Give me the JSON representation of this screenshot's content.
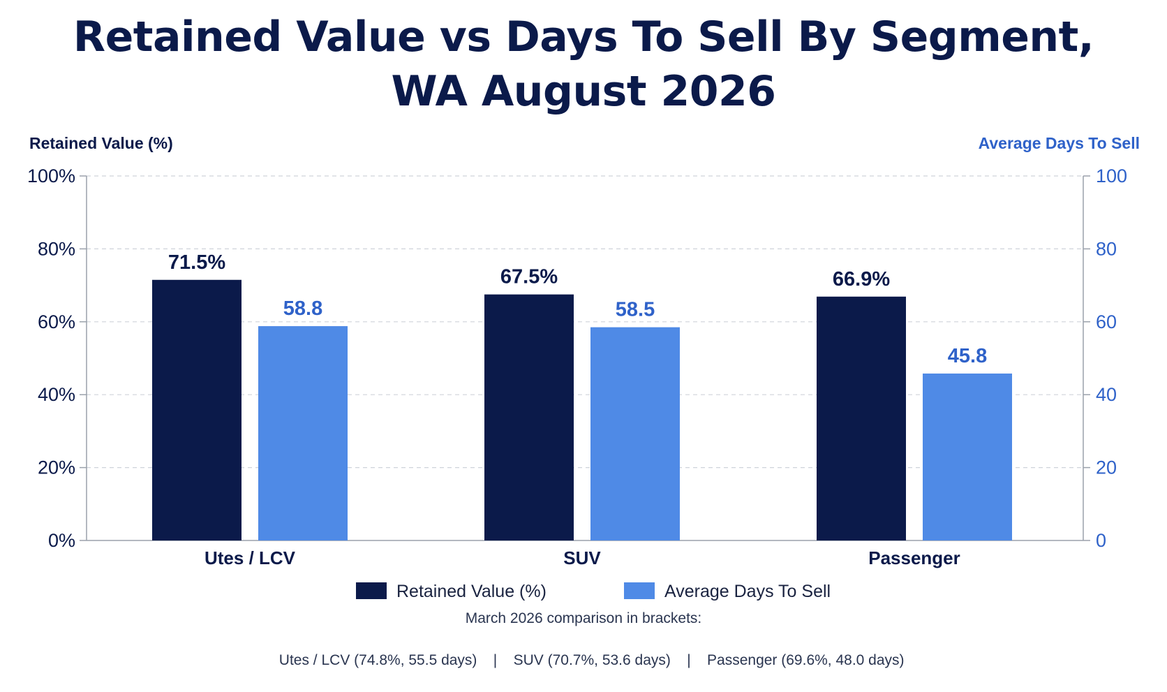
{
  "chart_data": {
    "type": "bar",
    "title": [
      "Retained Value vs Days To Sell By Segment,",
      "WA August 2026"
    ],
    "categories": [
      "Utes / LCV",
      "SUV",
      "Passenger"
    ],
    "y_left": {
      "label": "Retained Value (%)",
      "range": [
        0,
        100
      ],
      "ticks": [
        "0%",
        "20%",
        "40%",
        "60%",
        "80%",
        "100%"
      ]
    },
    "y_right": {
      "label": "Average Days To Sell",
      "range": [
        0,
        100
      ],
      "ticks": [
        "0",
        "20",
        "40",
        "60",
        "80",
        "100"
      ]
    },
    "grid": true,
    "legend_position": "bottom",
    "series": [
      {
        "name": "Retained Value (%)",
        "axis": "left",
        "color": "#0b1a4a",
        "label_color": "#0b1a4a",
        "values": [
          71.5,
          67.5,
          66.9
        ],
        "labels": [
          "71.5%",
          "67.5%",
          "66.9%"
        ]
      },
      {
        "name": "Average Days To Sell",
        "axis": "right",
        "color": "#4f8ae6",
        "label_color": "#2f62c9",
        "values": [
          58.8,
          58.5,
          45.8
        ],
        "labels": [
          "58.8",
          "58.5",
          "45.8"
        ]
      }
    ],
    "annotation": {
      "heading": "March 2026 comparison in brackets:",
      "items": [
        "Utes / LCV (74.8%, 55.5 days)",
        "SUV (70.7%, 53.6 days)",
        "Passenger (69.6%, 48.0 days)"
      ],
      "separator": "|"
    }
  }
}
